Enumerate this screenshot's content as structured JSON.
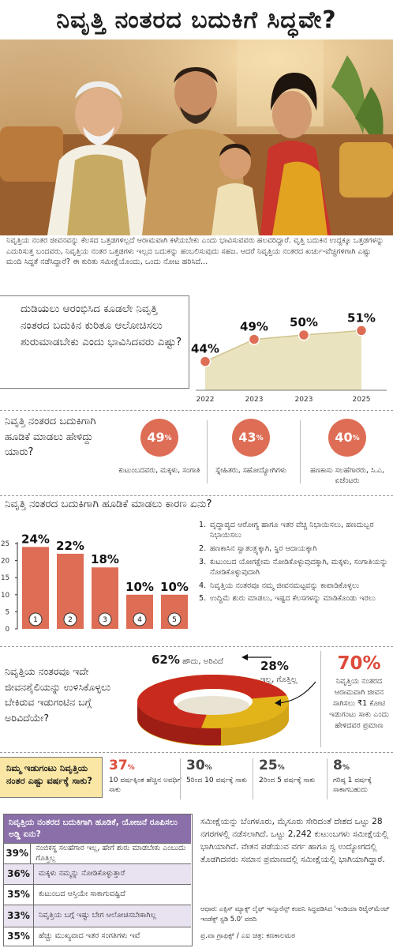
{
  "title": "ನಿವೃತ್ತಿ ನಂತರದ ಬದುಕಿಗೆ ಸಿದ್ಧವೇ?",
  "intro": "ನಿವೃತ್ತಿಯ ನಂತರ ಜೀವನವನ್ನು ಕೆಲಸದ ಒತ್ತಡಗಳಿಲ್ಲದೆ ಆರಾಮವಾಗಿ ಕಳೆಯಬೇಕು ಎಂದು ಭಾವಿಸುವವರು ಹಲವರಿದ್ದಾರೆ. ವೃತ್ತಿ ಬದುಕಿನ ಉದ್ದಕ್ಕೂ ಒತ್ತಡಗಳನ್ನು ಎದುರಿಸುತ್ತ ಬಂದವರು, ನಿವೃತ್ತಿಯ ನಂತರ ಒತ್ತಡಗಳು ಇಲ್ಲದ ಬದುಕನ್ನು ಹಂಬಲಿಸುವುದು ಸಹಜ. ಆದರೆ ನಿವೃತ್ತಿಯ ನಂತರದ ಖರ್ಚು-ವೆಚ್ಚಗಳಿಗಾಗಿ ಎಷ್ಟು ಮಂದಿ ಸಿದ್ಧತೆ ನಡೆಸಿದ್ದಾರೆ? ಈ ಕುರಿತು ಸಮೀಕ್ಷೆಯೊಂದು, ಒಂದು ನೋಟ ಹರಿಸಿದೆ...",
  "colors": {
    "accent": "#de6d55",
    "area": "#eae3bf",
    "purple": "#8a6fa8",
    "yellow": "#fbe7a5",
    "red": "#de4b3a",
    "ring_red": "#c92a1e",
    "ring_yellow": "#e3b419"
  },
  "chart_data": [
    {
      "type": "area",
      "title": "ದುಡಿಯಲು ಆರಂಭಿಸಿದ ಕೂಡಲೇ ನಿವೃತ್ತಿ ನಂತರದ ಬದುಕಿನ ಕುರಿತೂ ಆಲೋಚಿಸಲು ಶುರುಮಾಡಬೇಕು ಎಂದು ಭಾವಿಸಿದವರು ಎಷ್ಟು?",
      "x": [
        "2022",
        "2023",
        "2023",
        "2025"
      ],
      "values": [
        44,
        49,
        50,
        51
      ],
      "labels": [
        "44%",
        "49%",
        "50%",
        "51%"
      ]
    },
    {
      "type": "bar",
      "title": "ನಿವೃತ್ತಿ ನಂತರದ ಬದುಕಿಗಾಗಿ ಹೂಡಿಕೆ ಮಾಡಲು ಕಾರಣ ಏನು?",
      "categories": [
        "1",
        "2",
        "3",
        "4",
        "5"
      ],
      "values": [
        24,
        22,
        18,
        10,
        10
      ],
      "ylim": [
        0,
        25
      ],
      "yticks": [
        "25",
        "20",
        "15",
        "10",
        "5",
        "0"
      ],
      "legend": [
        "ವೃದ್ಧಾಪ್ಯದ ಆರೋಗ್ಯ ಹಾಗೂ ಇತರ ವೆಚ್ಚ ನಿಭಾಯಿಸಲು, ಹಣದುಬ್ಬರ ನಿಭಾಯಿಸಲು",
        "ಹಣಕಾಸಿನ ಸ್ವಾತಂತ್ರ್ಯಕ್ಕಾಗಿ, ಸ್ಥಿರ ಆದಾಯಕ್ಕಾಗಿ",
        "ಕುಟುಂಬದ ಯೋಗಕ್ಷೇಮ ನೋಡಿಕೊಳ್ಳುವುದಕ್ಕಾಗಿ, ಮಕ್ಕಳು, ಸಂಗಾತಿಯನ್ನು ನೋಡಿಕೊಳ್ಳುವುದಾಗಿ",
        "ನಿವೃತ್ತಿಯ ನಂತರವೂ ನಮ್ಮ ಜೀವನಮಟ್ಟವನ್ನು ಕಾಪಾಡಿಕೊಳ್ಳಲು",
        "ಉದ್ದಿಮೆ ಶುರು ಮಾಡಲು, ಇಷ್ಟದ ಕೆಲಸಗಳನ್ನು ಮಾಡಿಕೊಂಡು ಇರಲು"
      ]
    },
    {
      "type": "pie",
      "title": "ನಿವೃತ್ತಿಯ ನಂತರವೂ ಇದೇ ಜೀವನಶೈಲಿಯನ್ನು ಉಳಿಸಿಕೊಳ್ಳಲು ಬೇಕಿರುವ ಇಡುಗಂಟಿನ ಬಗ್ಗೆ ಅರಿವಿದೆಯೇ?",
      "slices": [
        {
          "label": "ಹೌದು, ಅರಿವಿದೆ",
          "value": 62,
          "value_label": "62%"
        },
        {
          "label": "ಇಲ್ಲ, ಗೊತ್ತಿಲ್ಲ",
          "value": 28,
          "value_label": "28%"
        }
      ]
    }
  ],
  "advisors": {
    "question": "ನಿವೃತ್ತಿ ನಂತರದ ಬದುಕಿಗಾಗಿ ಹೂಡಿಕೆ ಮಾಡಲು ಹೇಳಿದ್ದು ಯಾರು?",
    "items": [
      {
        "value": "49",
        "unit": "%",
        "label": "ಕುಟುಂಬದವರು, ಮಕ್ಕಳು, ಸಂಗಾತಿ"
      },
      {
        "value": "43",
        "unit": "%",
        "label": "ಸ್ನೇಹಿತರು, ಸಹೋದ್ಯೋಗಿಗಳು"
      },
      {
        "value": "40",
        "unit": "%",
        "label": "ಹಣಕಾಸು ಸಲಹೆಗಾರರು, ಸಿ.ಎ, ಏಜೆಂಟರು"
      }
    ]
  },
  "retire_comfort": {
    "value": "70%",
    "text": "ನಿವೃತ್ತಿಯ ನಂತರದ ಆರಾಮವಾಗಿ ಜೀವನ ಸಾಗಿಸಲು ₹1 ಕೋಟಿ ಇಡುಗಂಟು ಸಾಕು ಎಂದು ಹೇಳಿದವರ ಪ್ರಮಾಣ"
  },
  "savings_duration": {
    "question": "ನಿಮ್ಮ ಇಡುಗಂಟು ನಿವೃತ್ತಿಯ ನಂತರ ಎಷ್ಟು ವರ್ಷಕ್ಕೆ ಸಾಕು?",
    "items": [
      {
        "value": "37",
        "label": "10 ವರ್ಷಕ್ಕಿಂತ ಹೆಚ್ಚಿನ ಅವಧಿಗೆ ಸಾಕು",
        "highlight": true
      },
      {
        "value": "30",
        "label": "5ರಿಂದ 10 ವರ್ಷಕ್ಕೆ ಸಾಕು",
        "highlight": false
      },
      {
        "value": "25",
        "label": "2ರಿಂದ 5 ವರ್ಷಕ್ಕೆ ಸಾಕು",
        "highlight": false
      },
      {
        "value": "8",
        "label": "ಗರಿಷ್ಠ 1 ವರ್ಷಕ್ಕೆ ಸಾಕಾಗಬಹುದು",
        "highlight": false
      }
    ]
  },
  "no_plan": {
    "header": "ನಿವೃತ್ತಿಯ ನಂತರದ ಬದುಕಿಗಾಗಿ ಹೂಡಿಕೆ, ಯೋಜನೆ ರೂಪಿಸಲು ಅಡ್ಡಿ ಏನು?",
    "rows": [
      {
        "pct": "39%",
        "text": "ನಂಬಿಕಸ್ಥ ಸಲಹೆಗಾರ ಇಲ್ಲ, ಹೇಗೆ ಶುರು ಮಾಡಬೇಕು ಎಂಬುದು ಗೊತ್ತಿಲ್ಲ"
      },
      {
        "pct": "36%",
        "text": "ಮಕ್ಕಳು ನಮ್ಮನ್ನು ನೋಡಿಕೊಳ್ಳುತ್ತಾರೆ"
      },
      {
        "pct": "35%",
        "text": "ಕುಟುಂಬದ ಆಸ್ತಿಯೇ ಸಾಕಾಗುವಷ್ಟಿದೆ"
      },
      {
        "pct": "33%",
        "text": "ನಿವೃತ್ತಿಯ ಬಗ್ಗೆ ಇಷ್ಟು ಬೇಗ ಆಲೋಚಿಸಬೇಕಾಗಿಲ್ಲ"
      },
      {
        "pct": "35%",
        "text": "ಹೆಚ್ಚು ಮುಖ್ಯವಾದ ಇತರ ಸಂಗತಿಗಳು ಇವೆ"
      }
    ]
  },
  "survey_note": "ಸಮೀಕ್ಷೆಯನ್ನು ಬೆಂಗಳೂರು, ಮೈಸೂರು ಸೇರಿದಂತೆ ದೇಶದ ಒಟ್ಟು 28 ನಗರಗಳಲ್ಲಿ ನಡೆಸಲಾಗಿದೆ. ಒಟ್ಟು 2,242 ಕುಟುಂಬಗಳು ಸಮೀಕ್ಷೆಯಲ್ಲಿ ಭಾಗಿಯಾಗಿವೆ. ವೇತನ ಪಡೆಯುವ ವರ್ಗ ಹಾಗೂ ಸ್ವ ಉದ್ಯೋಗದಲ್ಲಿ ತೊಡಗಿದವರು ಸಮಾನ ಪ್ರಮಾಣದಲ್ಲಿ ಸಮೀಕ್ಷೆಯಲ್ಲಿ ಭಾಗಿಯಾಗಿದ್ದಾರೆ.",
  "source": "ಆಧಾರ: ಎಕ್ಸಿಸ್ ಮ್ಯಾಕ್ಸ್ ಲೈಫ್ ಇನ್ಶೂರೆನ್ಸ್ ಕಂಪನಿ ಸಿದ್ಧಪಡಿಸಿದ 'ಇಂಡಿಯಾ ರಿಟೈರ್‌ಮೆಂಟ್ ಇಂಡೆಕ್ಸ್ ಸ್ಟಡಿ 5.0' ವರದಿ",
  "credit": "ಪ್ರ.ವಾ ಗ್ರಾಫಿಕ್ಸ್ / ಎಐ ಚಿತ್ರ: ಕಣಕಾಲಮಠ"
}
